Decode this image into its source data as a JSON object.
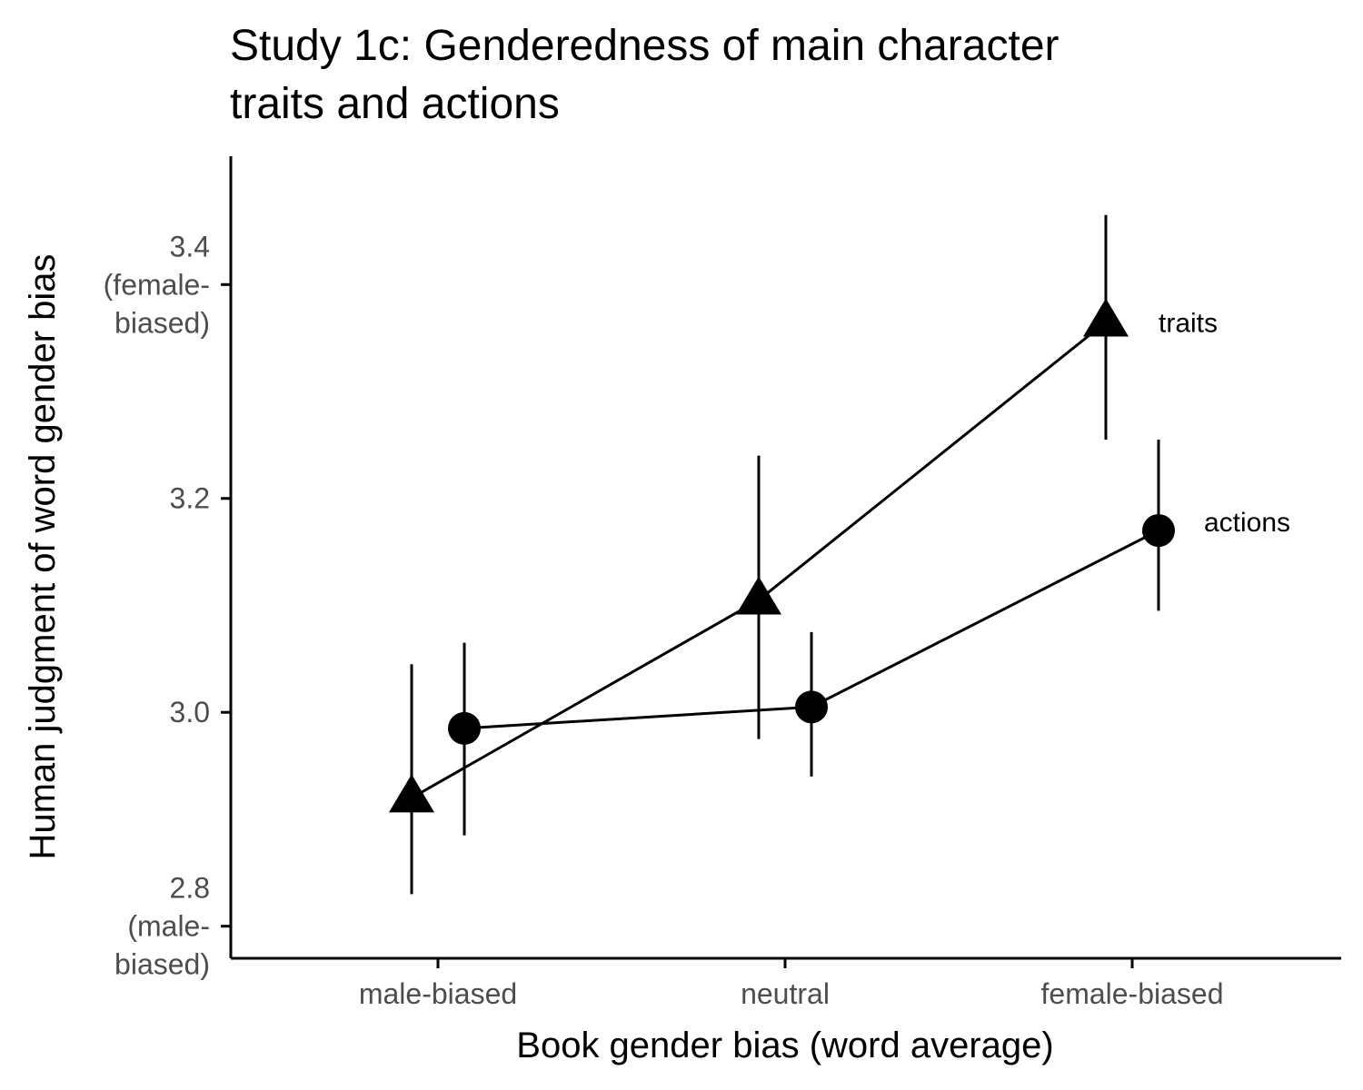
{
  "chart_data": {
    "type": "line",
    "title_lines": [
      "Study 1c: Genderedness of main character",
      "traits and actions"
    ],
    "xlabel": "Book gender bias (word average)",
    "ylabel": "Human judgment of word gender bias",
    "categories": [
      "male-biased",
      "neutral",
      "female-biased"
    ],
    "ylim": [
      2.77,
      3.52
    ],
    "y_ticks": [
      {
        "value": 3.4,
        "lines": [
          "3.4",
          "(female-",
          "biased)"
        ]
      },
      {
        "value": 3.2,
        "lines": [
          "3.2"
        ]
      },
      {
        "value": 3.0,
        "lines": [
          "3.0"
        ]
      },
      {
        "value": 2.8,
        "lines": [
          "2.8",
          "(male-",
          "biased)"
        ]
      }
    ],
    "grid": false,
    "legend": "none",
    "series": [
      {
        "name": "traits",
        "marker": "triangle",
        "values": [
          2.92,
          3.105,
          3.365
        ],
        "lower": [
          2.83,
          2.975,
          3.255
        ],
        "upper": [
          3.045,
          3.24,
          3.465
        ]
      },
      {
        "name": "actions",
        "marker": "circle",
        "values": [
          2.985,
          3.005,
          3.17
        ],
        "lower": [
          2.885,
          2.94,
          3.095
        ],
        "upper": [
          3.065,
          3.075,
          3.255
        ]
      }
    ],
    "colors": {
      "marks": "#000000",
      "tick_text": "#4d4d4d"
    }
  }
}
